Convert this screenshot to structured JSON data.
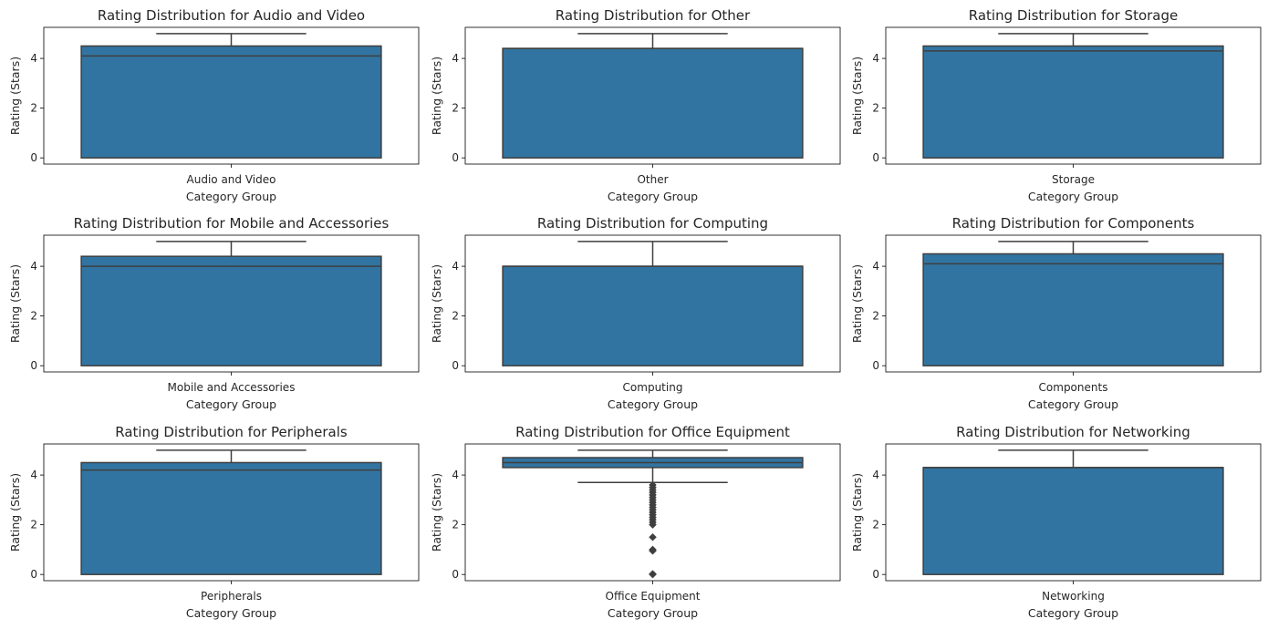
{
  "chart_data": [
    {
      "type": "box",
      "title": "Rating Distribution for Audio and Video",
      "xlabel": "Category Group",
      "ylabel": "Rating (Stars)",
      "category": "Audio and Video",
      "yticks": [
        0,
        2,
        4
      ],
      "ylim": [
        -0.25,
        5.25
      ],
      "box": {
        "min": 0,
        "q1": 0,
        "median": 4.1,
        "q3": 4.5,
        "max": 5
      },
      "outliers": []
    },
    {
      "type": "box",
      "title": "Rating Distribution for Other",
      "xlabel": "Category Group",
      "ylabel": "Rating (Stars)",
      "category": "Other",
      "yticks": [
        0,
        2,
        4
      ],
      "ylim": [
        -0.25,
        5.25
      ],
      "box": {
        "min": 0,
        "q1": 0,
        "median": 4.4,
        "q3": 4.4,
        "max": 5
      },
      "outliers": []
    },
    {
      "type": "box",
      "title": "Rating Distribution for Storage",
      "xlabel": "Category Group",
      "ylabel": "Rating (Stars)",
      "category": "Storage",
      "yticks": [
        0,
        2,
        4
      ],
      "ylim": [
        -0.25,
        5.25
      ],
      "box": {
        "min": 0,
        "q1": 0,
        "median": 4.3,
        "q3": 4.5,
        "max": 5
      },
      "outliers": []
    },
    {
      "type": "box",
      "title": "Rating Distribution for Mobile and Accessories",
      "xlabel": "Category Group",
      "ylabel": "Rating (Stars)",
      "category": "Mobile and Accessories",
      "yticks": [
        0,
        2,
        4
      ],
      "ylim": [
        -0.25,
        5.25
      ],
      "box": {
        "min": 0,
        "q1": 0,
        "median": 4.0,
        "q3": 4.4,
        "max": 5
      },
      "outliers": []
    },
    {
      "type": "box",
      "title": "Rating Distribution for Computing",
      "xlabel": "Category Group",
      "ylabel": "Rating (Stars)",
      "category": "Computing",
      "yticks": [
        0,
        2,
        4
      ],
      "ylim": [
        -0.25,
        5.25
      ],
      "box": {
        "min": 0,
        "q1": 0,
        "median": 4.0,
        "q3": 4.0,
        "max": 5
      },
      "outliers": []
    },
    {
      "type": "box",
      "title": "Rating Distribution for Components",
      "xlabel": "Category Group",
      "ylabel": "Rating (Stars)",
      "category": "Components",
      "yticks": [
        0,
        2,
        4
      ],
      "ylim": [
        -0.25,
        5.25
      ],
      "box": {
        "min": 0,
        "q1": 0,
        "median": 4.1,
        "q3": 4.5,
        "max": 5
      },
      "outliers": []
    },
    {
      "type": "box",
      "title": "Rating Distribution for Peripherals",
      "xlabel": "Category Group",
      "ylabel": "Rating (Stars)",
      "category": "Peripherals",
      "yticks": [
        0,
        2,
        4
      ],
      "ylim": [
        -0.25,
        5.25
      ],
      "box": {
        "min": 0,
        "q1": 0,
        "median": 4.2,
        "q3": 4.5,
        "max": 5
      },
      "outliers": []
    },
    {
      "type": "box",
      "title": "Rating Distribution for Office Equipment",
      "xlabel": "Category Group",
      "ylabel": "Rating (Stars)",
      "category": "Office Equipment",
      "yticks": [
        0,
        2,
        4
      ],
      "ylim": [
        -0.25,
        5.25
      ],
      "box": {
        "min": 3.7,
        "q1": 4.3,
        "median": 4.5,
        "q3": 4.7,
        "max": 5
      },
      "outliers": [
        3.6,
        3.5,
        3.4,
        3.3,
        3.2,
        3.1,
        3.0,
        2.9,
        2.8,
        2.7,
        2.6,
        2.5,
        2.4,
        2.3,
        2.2,
        2.1,
        2.0,
        1.5,
        1.0,
        0.95,
        0.0,
        0.02
      ]
    },
    {
      "type": "box",
      "title": "Rating Distribution for Networking",
      "xlabel": "Category Group",
      "ylabel": "Rating (Stars)",
      "category": "Networking",
      "yticks": [
        0,
        2,
        4
      ],
      "ylim": [
        -0.25,
        5.25
      ],
      "box": {
        "min": 0,
        "q1": 0,
        "median": 4.3,
        "q3": 4.3,
        "max": 5
      },
      "outliers": []
    }
  ],
  "colors": {
    "box_fill": "#3274a1",
    "line": "#3f3f3f",
    "axis": "#000000"
  }
}
